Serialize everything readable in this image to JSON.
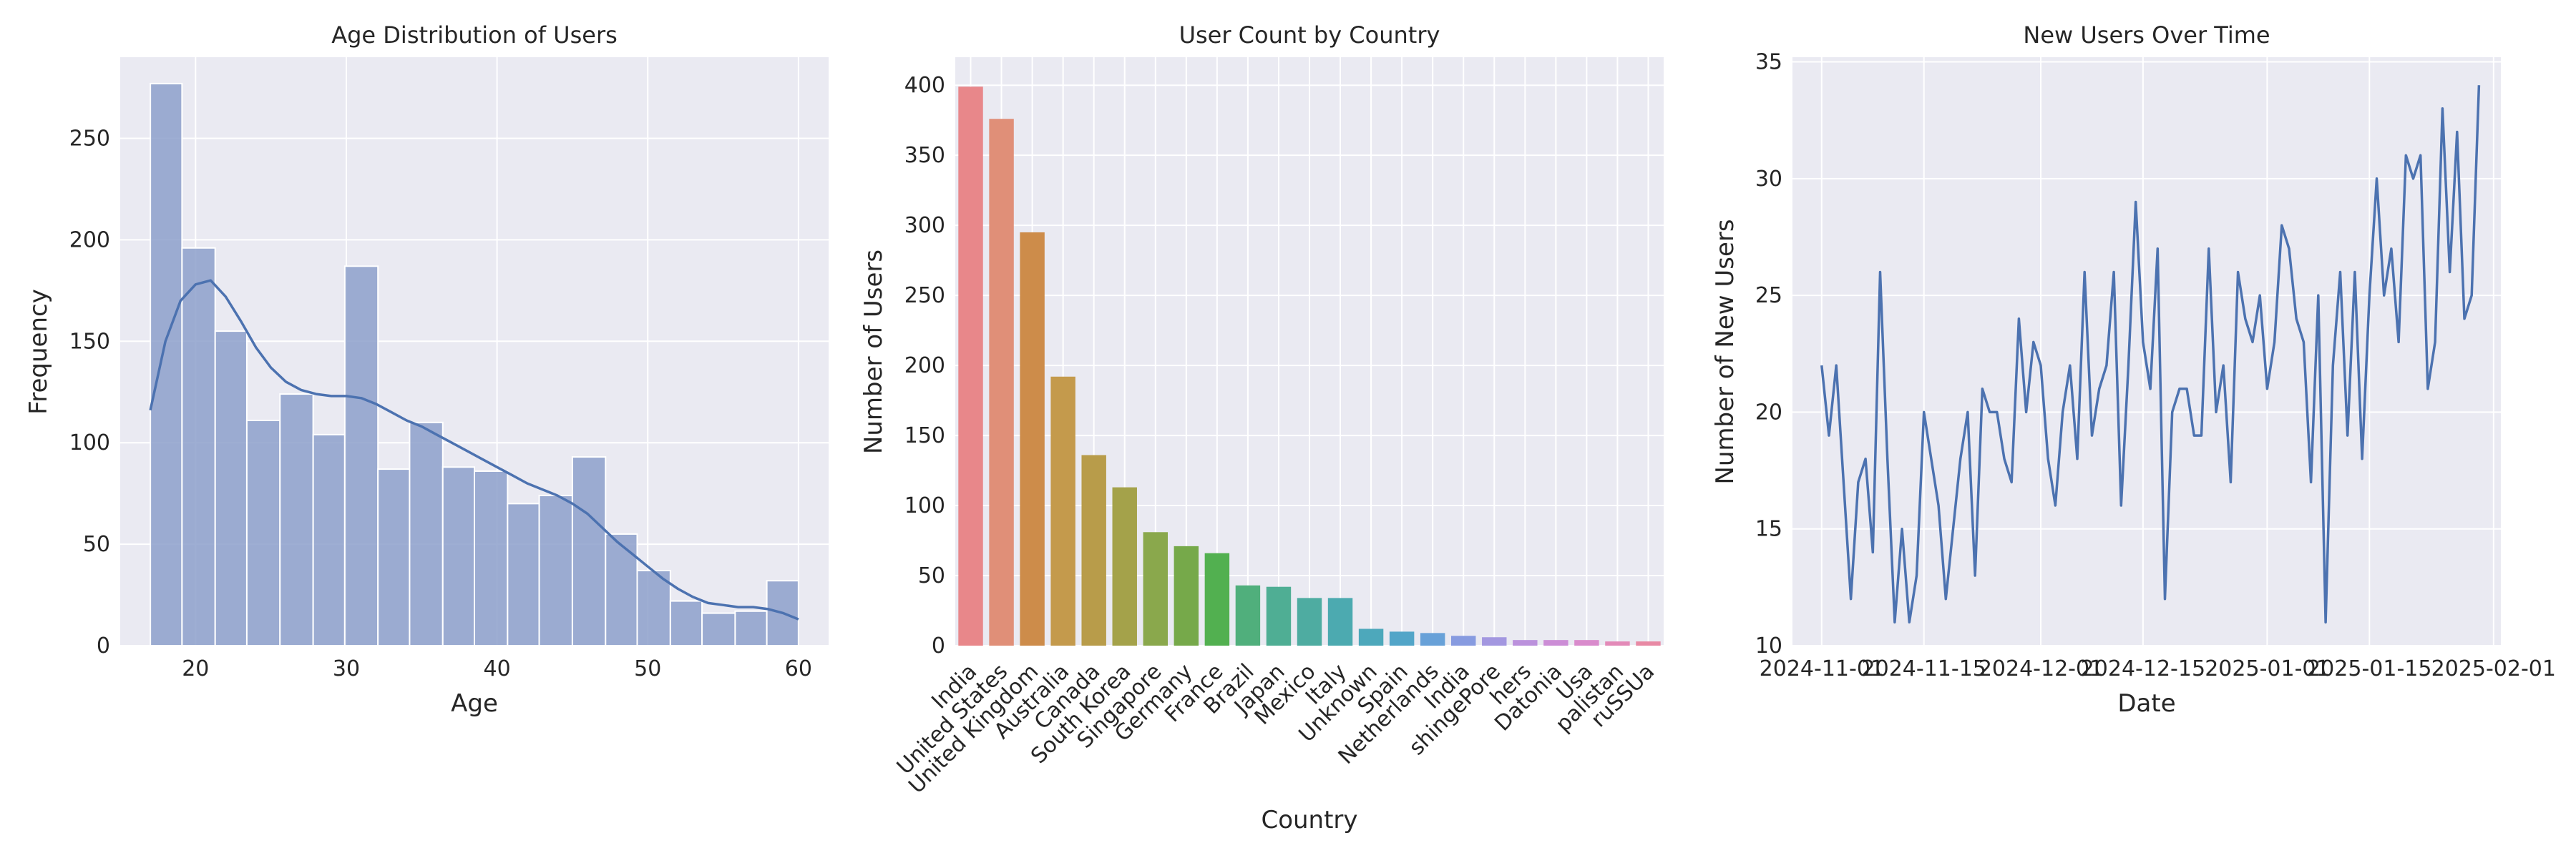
{
  "chart_data": [
    {
      "type": "bar",
      "subtype": "histogram",
      "title": "Age Distribution of Users",
      "xlabel": "Age",
      "ylabel": "Frequency",
      "xlim": [
        15,
        62
      ],
      "ylim": [
        0,
        290
      ],
      "xticks": [
        20,
        30,
        40,
        50,
        60
      ],
      "yticks": [
        0,
        50,
        100,
        150,
        200,
        250
      ],
      "grid": true,
      "bar_color": "#8da0cb",
      "line_color": "#4c72b0",
      "bins": [
        {
          "x0": 17.0,
          "x1": 19.1,
          "count": 277
        },
        {
          "x0": 19.1,
          "x1": 21.3,
          "count": 196
        },
        {
          "x0": 21.3,
          "x1": 23.4,
          "count": 155
        },
        {
          "x0": 23.4,
          "x1": 25.6,
          "count": 111
        },
        {
          "x0": 25.6,
          "x1": 27.8,
          "count": 124
        },
        {
          "x0": 27.8,
          "x1": 29.9,
          "count": 104
        },
        {
          "x0": 29.9,
          "x1": 32.1,
          "count": 187
        },
        {
          "x0": 32.1,
          "x1": 34.2,
          "count": 87
        },
        {
          "x0": 34.2,
          "x1": 36.4,
          "count": 110
        },
        {
          "x0": 36.4,
          "x1": 38.5,
          "count": 88
        },
        {
          "x0": 38.5,
          "x1": 40.7,
          "count": 86
        },
        {
          "x0": 40.7,
          "x1": 42.8,
          "count": 70
        },
        {
          "x0": 42.8,
          "x1": 45.0,
          "count": 74
        },
        {
          "x0": 45.0,
          "x1": 47.2,
          "count": 93
        },
        {
          "x0": 47.2,
          "x1": 49.3,
          "count": 55
        },
        {
          "x0": 49.3,
          "x1": 51.5,
          "count": 37
        },
        {
          "x0": 51.5,
          "x1": 53.6,
          "count": 22
        },
        {
          "x0": 53.6,
          "x1": 55.8,
          "count": 16
        },
        {
          "x0": 55.8,
          "x1": 57.9,
          "count": 17
        },
        {
          "x0": 57.9,
          "x1": 60.0,
          "count": 32
        }
      ],
      "kde": {
        "x": [
          17,
          18,
          19,
          20,
          21,
          22,
          23,
          24,
          25,
          26,
          27,
          28,
          29,
          30,
          31,
          32,
          33,
          34,
          35,
          36,
          37,
          38,
          39,
          40,
          41,
          42,
          43,
          44,
          45,
          46,
          47,
          48,
          49,
          50,
          51,
          52,
          53,
          54,
          55,
          56,
          57,
          58,
          59,
          60
        ],
        "y": [
          116,
          150,
          170,
          178,
          180,
          172,
          160,
          147,
          137,
          130,
          126,
          124,
          123,
          123,
          122,
          119,
          115,
          111,
          108,
          104,
          100,
          96,
          92,
          88,
          84,
          80,
          77,
          74,
          70,
          65,
          58,
          51,
          45,
          39,
          33,
          28,
          24,
          21,
          20,
          19,
          19,
          18,
          16,
          13
        ]
      }
    },
    {
      "type": "bar",
      "title": "User Count by Country",
      "xlabel": "Country",
      "ylabel": "Number of Users",
      "ylim": [
        0,
        420
      ],
      "yticks": [
        0,
        50,
        100,
        150,
        200,
        250,
        300,
        350,
        400
      ],
      "grid": true,
      "categories": [
        "India",
        "United States",
        "United Kingdom",
        "Australia",
        "Canada",
        "South Korea",
        "Singapore",
        "Germany",
        "France",
        "Brazil",
        "Japan",
        "Mexico",
        "Italy",
        "Unknown",
        "Spain",
        "Netherlands",
        "India",
        "shingePore",
        "hers",
        "Datonia",
        "Usa",
        "palistan",
        "ruSSUa"
      ],
      "values": [
        399,
        376,
        295,
        192,
        136,
        113,
        81,
        71,
        66,
        43,
        42,
        34,
        34,
        12,
        10,
        9,
        7,
        6,
        4,
        4,
        4,
        3,
        3
      ],
      "colors": [
        "#e8878a",
        "#e08f78",
        "#cd8c4a",
        "#c49a4c",
        "#b89c4a",
        "#a4a24a",
        "#8aa84c",
        "#76a94a",
        "#52b050",
        "#50af7c",
        "#4fae94",
        "#4eaca1",
        "#4caab0",
        "#4da8bb",
        "#52a5c8",
        "#68a1d8",
        "#879be0",
        "#a397e0",
        "#bb91dc",
        "#cc8dd6",
        "#d98bcc",
        "#e38ab8",
        "#e889a4"
      ]
    },
    {
      "type": "line",
      "title": "New Users Over Time",
      "xlabel": "Date",
      "ylabel": "Number of New Users",
      "x_start": "2024-11-01",
      "x_end": "2025-01-29",
      "xlim": [
        "2024-10-28",
        "2025-02-02"
      ],
      "ylim": [
        10,
        35.2
      ],
      "xticks": [
        "2024-11-01",
        "2024-11-15",
        "2024-12-01",
        "2024-12-15",
        "2025-01-01",
        "2025-01-15",
        "2025-02-01"
      ],
      "yticks": [
        10,
        15,
        20,
        25,
        30,
        35
      ],
      "grid": true,
      "line_color": "#4c72b0",
      "values": [
        22,
        19,
        22,
        17,
        12,
        17,
        18,
        14,
        26,
        18,
        11,
        15,
        11,
        13,
        20,
        18,
        16,
        12,
        15,
        18,
        20,
        13,
        21,
        20,
        20,
        18,
        17,
        24,
        20,
        23,
        22,
        18,
        16,
        20,
        22,
        18,
        26,
        19,
        21,
        22,
        26,
        16,
        22,
        29,
        23,
        21,
        27,
        12,
        20,
        21,
        21,
        19,
        19,
        27,
        20,
        22,
        17,
        26,
        24,
        23,
        25,
        21,
        23,
        28,
        27,
        24,
        23,
        17,
        25,
        11,
        22,
        26,
        19,
        26,
        18,
        25,
        30,
        25,
        27,
        23,
        31,
        30,
        31,
        21,
        23,
        33,
        26,
        32,
        24,
        25,
        34
      ]
    }
  ]
}
